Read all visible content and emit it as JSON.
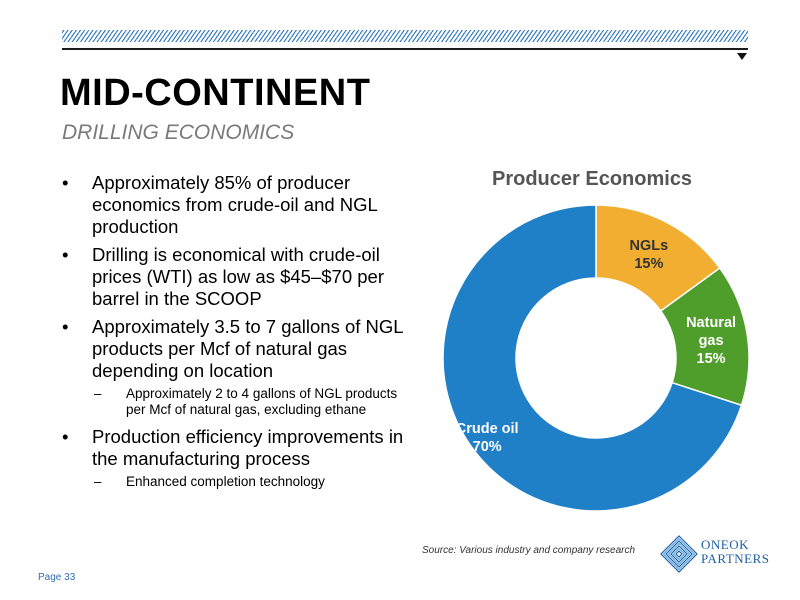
{
  "slide": {
    "title": "MID-CONTINENT",
    "subtitle": "DRILLING ECONOMICS",
    "page_label": "Page 33",
    "source": "Source: Various industry and company research"
  },
  "bullets": [
    {
      "text": "Approximately 85% of producer economics from crude-oil and NGL production",
      "subs": []
    },
    {
      "text": "Drilling is economical with crude-oil prices (WTI) as low as $45–$70 per barrel in the SCOOP",
      "subs": []
    },
    {
      "text": "Approximately 3.5 to 7 gallons of NGL products per Mcf of natural gas depending on location",
      "subs": [
        "Approximately 2 to 4 gallons of NGL products per Mcf of natural gas, excluding ethane"
      ]
    },
    {
      "text": "Production efficiency improvements in the manufacturing process",
      "subs": [
        "Enhanced completion technology"
      ]
    }
  ],
  "chart_data": {
    "type": "pie",
    "title": "Producer Economics",
    "categories": [
      "NGLs",
      "Natural gas",
      "Crude oil"
    ],
    "values": [
      15,
      15,
      70
    ],
    "label_lines": [
      [
        "NGLs",
        "15%"
      ],
      [
        "Natural",
        "gas",
        "15%"
      ],
      [
        "Crude oil",
        "70%"
      ]
    ],
    "colors": [
      "#f2ae30",
      "#4f9d2a",
      "#1f80c8"
    ],
    "donut": true
  },
  "logo": {
    "line1": "ONEOK",
    "line2": "PARTNERS",
    "colors": [
      "#1d5fa8",
      "#5aa7e0"
    ]
  }
}
